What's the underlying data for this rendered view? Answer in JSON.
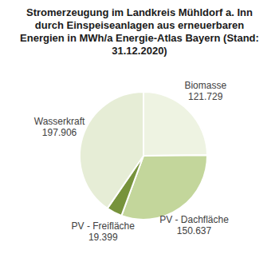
{
  "chart_data": {
    "type": "pie",
    "title": "Stromerzeugung im Landkreis Mühldorf a. Inn durch Einspeiseanlagen aus erneuerbaren Energien in MWh/a Energie-Atlas Bayern (Stand: 31.12.2020)",
    "categories": [
      "Biomasse",
      "PV - Dachfläche",
      "PV - Freifläche",
      "Wasserkraft"
    ],
    "values": [
      121729,
      150637,
      19399,
      197906
    ],
    "value_labels": [
      "121.729",
      "150.637",
      "19.399",
      "197.906"
    ],
    "colors": [
      "#eef3e2",
      "#c3d69b",
      "#77933c",
      "#e6edd6"
    ],
    "data_labels": true
  }
}
